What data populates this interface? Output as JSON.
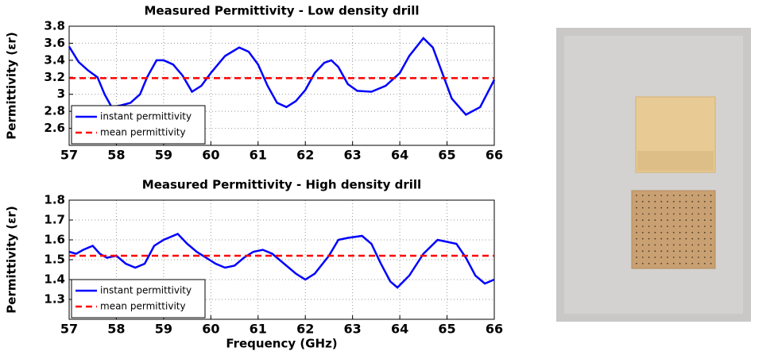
{
  "chart_data": [
    {
      "type": "line",
      "title": "Measured Permittivity - Low density drill",
      "y_label": "Permittivity (εr)",
      "xlim": [
        57,
        66
      ],
      "xticks": [
        57,
        58,
        59,
        60,
        61,
        62,
        63,
        64,
        65,
        66
      ],
      "ylim": [
        2.4,
        3.8
      ],
      "yticks": [
        2.6,
        2.8,
        3,
        3.2,
        3.4,
        3.6,
        3.8
      ],
      "grid": true,
      "legend": "lower-left",
      "series": [
        {
          "name": "instant permittivity",
          "color": "#0000ff",
          "style": "solid",
          "x": [
            57,
            57.2,
            57.4,
            57.6,
            57.75,
            57.9,
            58.1,
            58.3,
            58.5,
            58.65,
            58.85,
            59.0,
            59.2,
            59.4,
            59.6,
            59.8,
            60.0,
            60.3,
            60.6,
            60.8,
            61.0,
            61.2,
            61.4,
            61.6,
            61.8,
            62.0,
            62.2,
            62.4,
            62.55,
            62.7,
            62.9,
            63.1,
            63.4,
            63.7,
            64.0,
            64.2,
            64.5,
            64.7,
            64.9,
            65.1,
            65.4,
            65.7,
            66
          ],
          "values": [
            3.56,
            3.38,
            3.28,
            3.2,
            3.0,
            2.85,
            2.87,
            2.9,
            3.0,
            3.2,
            3.4,
            3.4,
            3.35,
            3.22,
            3.03,
            3.1,
            3.25,
            3.45,
            3.55,
            3.5,
            3.35,
            3.1,
            2.9,
            2.85,
            2.92,
            3.05,
            3.25,
            3.37,
            3.4,
            3.32,
            3.12,
            3.04,
            3.03,
            3.1,
            3.25,
            3.45,
            3.66,
            3.55,
            3.25,
            2.95,
            2.76,
            2.85,
            3.17
          ]
        },
        {
          "name": "mean permittivity",
          "color": "#ff0000",
          "style": "dashed",
          "x": [
            57,
            66
          ],
          "values": [
            3.19,
            3.19
          ]
        }
      ]
    },
    {
      "type": "line",
      "title": "Measured Permittivity - High density drill",
      "y_label": "Permittivity (εr)",
      "x_label": "Frequency (GHz)",
      "xlim": [
        57,
        66
      ],
      "xticks": [
        57,
        58,
        59,
        60,
        61,
        62,
        63,
        64,
        65,
        66
      ],
      "ylim": [
        1.2,
        1.8
      ],
      "yticks": [
        1.3,
        1.4,
        1.5,
        1.6,
        1.7,
        1.8
      ],
      "grid": true,
      "legend": "lower-left",
      "series": [
        {
          "name": "instant permittivity",
          "color": "#0000ff",
          "style": "solid",
          "x": [
            57,
            57.15,
            57.3,
            57.5,
            57.65,
            57.8,
            58.0,
            58.2,
            58.4,
            58.6,
            58.8,
            59.0,
            59.3,
            59.5,
            59.7,
            59.9,
            60.1,
            60.3,
            60.5,
            60.7,
            60.9,
            61.1,
            61.3,
            61.5,
            61.8,
            62.0,
            62.2,
            62.5,
            62.7,
            62.9,
            63.2,
            63.4,
            63.6,
            63.8,
            63.95,
            64.2,
            64.5,
            64.8,
            65.0,
            65.2,
            65.4,
            65.6,
            65.8,
            66
          ],
          "values": [
            1.54,
            1.53,
            1.55,
            1.57,
            1.53,
            1.51,
            1.52,
            1.48,
            1.46,
            1.48,
            1.57,
            1.6,
            1.63,
            1.58,
            1.54,
            1.51,
            1.48,
            1.46,
            1.47,
            1.51,
            1.54,
            1.55,
            1.53,
            1.49,
            1.43,
            1.4,
            1.43,
            1.52,
            1.6,
            1.61,
            1.62,
            1.58,
            1.48,
            1.39,
            1.36,
            1.42,
            1.53,
            1.6,
            1.59,
            1.58,
            1.51,
            1.42,
            1.38,
            1.4
          ]
        },
        {
          "name": "mean permittivity",
          "color": "#ff0000",
          "style": "dashed",
          "x": [
            57,
            66
          ],
          "values": [
            1.52,
            1.52
          ]
        }
      ]
    }
  ]
}
